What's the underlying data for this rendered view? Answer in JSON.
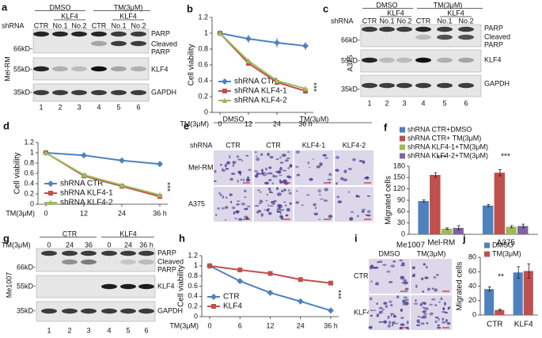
{
  "panel_letters": [
    "a",
    "b",
    "c",
    "d",
    "e",
    "f",
    "g",
    "h",
    "i",
    "j"
  ],
  "blot_a": {
    "groups": [
      "DMSO",
      "TM(3μM)"
    ],
    "subgroups": [
      "KLF4",
      "KLF4"
    ],
    "row_label": "shRNA",
    "lanes": [
      "CTR",
      "No.1",
      "No.2",
      "CTR",
      "No.1",
      "No.2"
    ],
    "bands": [
      "PARP",
      "Cleaved",
      "PARP",
      "KLF4",
      "GAPDH"
    ],
    "markers": [
      "66kD-",
      "55kD-",
      "35kD-"
    ],
    "cell_line": "Mel-RM",
    "lane_numbers": [
      "1",
      "2",
      "3",
      "4",
      "5",
      "6"
    ]
  },
  "blot_c": {
    "groups": [
      "DMSO",
      "TM(3μM)"
    ],
    "subgroups": [
      "KLF4",
      "KLF4"
    ],
    "row_label": "shRNA",
    "lanes": [
      "CTR",
      "No.1",
      "No.2",
      "CTR",
      "No.1",
      "No.2"
    ],
    "bands": [
      "PARP",
      "Cleaved",
      "PARP",
      "KLF4",
      "GAPDH"
    ],
    "markers": [
      "66kD-",
      "55kD-",
      "35kD-"
    ],
    "cell_line": "A375",
    "lane_numbers": [
      "1",
      "2",
      "3",
      "4",
      "5",
      "6"
    ]
  },
  "blot_g": {
    "groups": [
      "CTR",
      "KLF4"
    ],
    "row_label": "TM(3μM)",
    "lanes": [
      "0",
      "24",
      "36",
      "0",
      "24",
      "36 h"
    ],
    "bands": [
      "PARP",
      "Cleaved",
      "PARP",
      "KLF4",
      "GAPDH"
    ],
    "markers": [
      "66kD-",
      "55kD-",
      "35kD-"
    ],
    "cell_line": "Me1007",
    "lane_numbers": [
      "1",
      "2",
      "3",
      "4",
      "5",
      "6"
    ]
  },
  "image_e": {
    "groups": [
      "DMSO",
      "TM(3μM)"
    ],
    "row_label": "shRNA",
    "columns": [
      "CTR",
      "CTR",
      "KLF4-1",
      "KLF4-2"
    ],
    "rows": [
      "Mel-RM",
      "A375"
    ]
  },
  "image_i": {
    "title": "Me1007",
    "columns": [
      "DMSO",
      "TM(3μM)"
    ],
    "rows": [
      "CTR",
      "KLF4"
    ]
  },
  "chart_data": [
    {
      "type": "line",
      "categories": [
        "0",
        "12",
        "24",
        "36 h"
      ],
      "xlabel": "TM(3μM)",
      "ylabel": "Cell viability",
      "ylim": [
        0,
        1.2
      ],
      "yticks": [
        0,
        0.2,
        0.4,
        0.6,
        0.8,
        1,
        1.2
      ],
      "annotation": "***",
      "series": [
        {
          "name": "shRNA CTR",
          "color": "#4f81bd",
          "marker": "diamond",
          "values": [
            1.0,
            0.93,
            0.88,
            0.84
          ],
          "errors": [
            0,
            0.05,
            0.06,
            0.05
          ]
        },
        {
          "name": "shRNA KLF4-1",
          "color": "#c0504d",
          "marker": "square",
          "values": [
            1.0,
            0.62,
            0.38,
            0.27
          ],
          "errors": [
            0,
            0.02,
            0.03,
            0.04
          ]
        },
        {
          "name": "shRNA KLF4-2",
          "color": "#9bbb59",
          "marker": "triangle",
          "values": [
            1.0,
            0.65,
            0.4,
            0.3
          ],
          "errors": [
            0,
            0.02,
            0.03,
            0.03
          ]
        }
      ]
    },
    {
      "type": "line",
      "categories": [
        "0",
        "12",
        "24",
        "36 h"
      ],
      "xlabel": "TM(3μM)",
      "ylabel": "Cell viability",
      "ylim": [
        0,
        1.2
      ],
      "yticks": [
        0,
        0.2,
        0.4,
        0.6,
        0.8,
        1,
        1.2
      ],
      "annotation": "***",
      "series": [
        {
          "name": "shRNA CTR",
          "color": "#4f81bd",
          "marker": "diamond",
          "values": [
            1.0,
            0.95,
            0.85,
            0.78
          ],
          "errors": [
            0,
            0.04,
            0.03,
            0.03
          ]
        },
        {
          "name": "shRNA KLF4-1",
          "color": "#c0504d",
          "marker": "square",
          "values": [
            1.0,
            0.55,
            0.35,
            0.15
          ],
          "errors": [
            0,
            0.02,
            0.02,
            0.02
          ]
        },
        {
          "name": "shRNA KLF4-2",
          "color": "#9bbb59",
          "marker": "triangle",
          "values": [
            1.0,
            0.57,
            0.37,
            0.18
          ],
          "errors": [
            0,
            0.02,
            0.02,
            0.02
          ]
        }
      ]
    },
    {
      "type": "bar",
      "categories": [
        "Mel-RM",
        "A375"
      ],
      "ylabel": "Migrated cells",
      "ylim": [
        0,
        180
      ],
      "yticks": [
        0,
        30,
        60,
        90,
        120,
        150,
        180
      ],
      "annotations": [
        "***",
        "***"
      ],
      "series": [
        {
          "name": "shRNA CTR+DMSO",
          "color": "#4f81bd",
          "values": [
            88,
            76
          ],
          "errors": [
            3,
            3
          ]
        },
        {
          "name": "shRNA CTR+ TM(3μM)",
          "color": "#c0504d",
          "values": [
            157,
            163
          ],
          "errors": [
            6,
            8
          ]
        },
        {
          "name": "shRNA KLF4-1+TM(3μM)",
          "color": "#9bbb59",
          "values": [
            15,
            20
          ],
          "errors": [
            2,
            3
          ]
        },
        {
          "name": "shRNA KLF4-2+TM(3μM)",
          "color": "#8064a2",
          "values": [
            17,
            22
          ],
          "errors": [
            6,
            5
          ]
        }
      ]
    },
    {
      "type": "line",
      "categories": [
        "0",
        "6",
        "12",
        "24",
        "36 h"
      ],
      "xlabel": "TM(3μM)",
      "ylabel": "Cell viability",
      "ylim": [
        0,
        1.2
      ],
      "yticks": [
        0,
        0.2,
        0.4,
        0.6,
        0.8,
        1,
        1.2
      ],
      "annotation": "***",
      "series": [
        {
          "name": "CTR",
          "color": "#4f81bd",
          "marker": "diamond",
          "values": [
            1.0,
            0.7,
            0.47,
            0.3,
            0.12
          ],
          "errors": [
            0,
            0.03,
            0.05,
            0.03,
            0.02
          ]
        },
        {
          "name": "KLF4",
          "color": "#c0504d",
          "marker": "square",
          "values": [
            1.0,
            0.92,
            0.85,
            0.73,
            0.66
          ],
          "errors": [
            0,
            0.01,
            0.02,
            0.02,
            0.02
          ]
        }
      ]
    },
    {
      "type": "bar",
      "categories": [
        "CTR",
        "KLF4"
      ],
      "ylabel": "Migrated cells",
      "ylim": [
        0,
        80
      ],
      "yticks": [
        0,
        20,
        40,
        60,
        80
      ],
      "annotations": [
        "**"
      ],
      "series": [
        {
          "name": "DMSO",
          "color": "#4f81bd",
          "values": [
            36,
            59
          ],
          "errors": [
            3,
            8
          ]
        },
        {
          "name": "TM(3μM)",
          "color": "#c0504d",
          "values": [
            7,
            61
          ],
          "errors": [
            1,
            10
          ]
        }
      ]
    }
  ]
}
